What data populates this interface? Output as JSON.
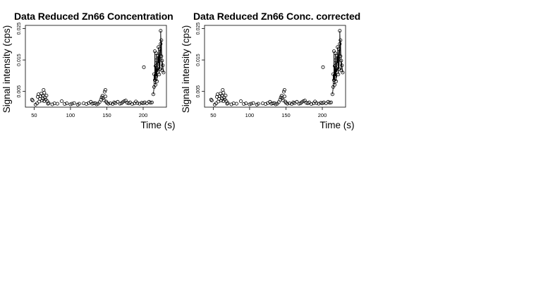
{
  "chart_data": [
    {
      "type": "scatter",
      "title": "Data Reduced Zn66 Concentration",
      "xlabel": "Time (s)",
      "ylabel": "Signal intensity (cps)",
      "xlim": [
        38,
        232
      ],
      "ylim": [
        0,
        0.026
      ],
      "xticks": [
        50,
        100,
        150,
        200
      ],
      "yticks": [
        0.005,
        0.015,
        0.025
      ],
      "xtick_labels": [
        "50",
        "100",
        "150",
        "200"
      ],
      "ytick_labels": [
        "0.005",
        "0.015",
        "0.025"
      ],
      "grid": false,
      "x": [
        47,
        48,
        52,
        54,
        55,
        56,
        57,
        58,
        59,
        60,
        61,
        62,
        62,
        63,
        64,
        64,
        65,
        66,
        67,
        68,
        69,
        70,
        75,
        78,
        82,
        88,
        92,
        95,
        100,
        102,
        105,
        110,
        112,
        118,
        122,
        125,
        128,
        130,
        132,
        134,
        136,
        138,
        140,
        142,
        143,
        144,
        145,
        146,
        147,
        148,
        148,
        149,
        150,
        152,
        155,
        158,
        160,
        162,
        165,
        168,
        170,
        172,
        174,
        176,
        178,
        180,
        182,
        185,
        188,
        190,
        192,
        195,
        198,
        200,
        201,
        202,
        205,
        208,
        210,
        212,
        214,
        215,
        215,
        216,
        216,
        217,
        217,
        218,
        218,
        218,
        219,
        219,
        220,
        220,
        221,
        221,
        222,
        222,
        223,
        223,
        224,
        224,
        225,
        225,
        226,
        226,
        227,
        228
      ],
      "y": [
        0.0024,
        0.0021,
        0.0008,
        0.0012,
        0.0033,
        0.0041,
        0.0018,
        0.0026,
        0.0035,
        0.0043,
        0.0021,
        0.0028,
        0.0036,
        0.0055,
        0.0019,
        0.0046,
        0.0031,
        0.0024,
        0.0037,
        0.0019,
        0.0011,
        0.0013,
        0.0009,
        0.0012,
        0.0011,
        0.0019,
        0.001,
        0.0012,
        0.0009,
        0.0011,
        0.0013,
        0.0008,
        0.0011,
        0.0012,
        0.001,
        0.0013,
        0.0017,
        0.0011,
        0.0012,
        0.0013,
        0.0009,
        0.0011,
        0.0016,
        0.0024,
        0.0031,
        0.0036,
        0.0029,
        0.0022,
        0.0049,
        0.0055,
        0.0034,
        0.0018,
        0.0014,
        0.0011,
        0.0012,
        0.001,
        0.0015,
        0.0013,
        0.0017,
        0.0011,
        0.0012,
        0.0016,
        0.0019,
        0.0021,
        0.0014,
        0.0012,
        0.0015,
        0.001,
        0.0012,
        0.0018,
        0.0013,
        0.0011,
        0.0014,
        0.0012,
        0.0127,
        0.0015,
        0.0012,
        0.0017,
        0.0014,
        0.0015,
        0.0041,
        0.0064,
        0.0105,
        0.0086,
        0.0178,
        0.0071,
        0.0131,
        0.0098,
        0.0149,
        0.0171,
        0.0082,
        0.0123,
        0.0112,
        0.0163,
        0.0139,
        0.0191,
        0.0104,
        0.0156,
        0.0184,
        0.0121,
        0.0201,
        0.0243,
        0.0162,
        0.0213,
        0.0117,
        0.0148,
        0.0133,
        0.011
      ],
      "line_from_x": 214
    },
    {
      "type": "scatter",
      "title": "Data Reduced Zn66 Conc. corrected",
      "xlabel": "Time (s)",
      "ylabel": "Signal intensity (cps)",
      "xlim": [
        38,
        232
      ],
      "ylim": [
        0,
        0.026
      ],
      "xticks": [
        50,
        100,
        150,
        200
      ],
      "yticks": [
        0.005,
        0.015,
        0.025
      ],
      "xtick_labels": [
        "50",
        "100",
        "150",
        "200"
      ],
      "ytick_labels": [
        "0.005",
        "0.015",
        "0.025"
      ],
      "grid": false,
      "x": [
        47,
        48,
        52,
        54,
        55,
        56,
        57,
        58,
        59,
        60,
        61,
        62,
        62,
        63,
        64,
        64,
        65,
        66,
        67,
        68,
        69,
        70,
        75,
        78,
        82,
        88,
        92,
        95,
        100,
        102,
        105,
        110,
        112,
        118,
        122,
        125,
        128,
        130,
        132,
        134,
        136,
        138,
        140,
        142,
        143,
        144,
        145,
        146,
        147,
        148,
        148,
        149,
        150,
        152,
        155,
        158,
        160,
        162,
        165,
        168,
        170,
        172,
        174,
        176,
        178,
        180,
        182,
        185,
        188,
        190,
        192,
        195,
        198,
        200,
        201,
        202,
        205,
        208,
        210,
        212,
        214,
        215,
        215,
        216,
        216,
        217,
        217,
        218,
        218,
        218,
        219,
        219,
        220,
        220,
        221,
        221,
        222,
        222,
        223,
        223,
        224,
        224,
        225,
        225,
        226,
        226,
        227,
        228
      ],
      "y": [
        0.0024,
        0.0021,
        0.0008,
        0.0012,
        0.0033,
        0.0041,
        0.0018,
        0.0026,
        0.0035,
        0.0043,
        0.0021,
        0.0028,
        0.0036,
        0.0055,
        0.0019,
        0.0046,
        0.0031,
        0.0024,
        0.0037,
        0.0019,
        0.0011,
        0.0013,
        0.0009,
        0.0012,
        0.0011,
        0.0019,
        0.001,
        0.0012,
        0.0009,
        0.0011,
        0.0013,
        0.0008,
        0.0011,
        0.0012,
        0.001,
        0.0013,
        0.0017,
        0.0011,
        0.0012,
        0.0013,
        0.0009,
        0.0011,
        0.0016,
        0.0024,
        0.0031,
        0.0036,
        0.0029,
        0.0022,
        0.0049,
        0.0055,
        0.0034,
        0.0018,
        0.0014,
        0.0011,
        0.0012,
        0.001,
        0.0015,
        0.0013,
        0.0017,
        0.0011,
        0.0012,
        0.0016,
        0.0019,
        0.0021,
        0.0014,
        0.0012,
        0.0015,
        0.001,
        0.0012,
        0.0018,
        0.0013,
        0.0011,
        0.0014,
        0.0012,
        0.0127,
        0.0015,
        0.0012,
        0.0017,
        0.0014,
        0.0015,
        0.0041,
        0.0064,
        0.0105,
        0.0086,
        0.0178,
        0.0071,
        0.0131,
        0.0098,
        0.0149,
        0.0171,
        0.0082,
        0.0123,
        0.0112,
        0.0163,
        0.0139,
        0.0191,
        0.0104,
        0.0156,
        0.0184,
        0.0121,
        0.0201,
        0.0243,
        0.0162,
        0.0213,
        0.0117,
        0.0148,
        0.0133,
        0.011
      ],
      "line_from_x": 214
    }
  ]
}
